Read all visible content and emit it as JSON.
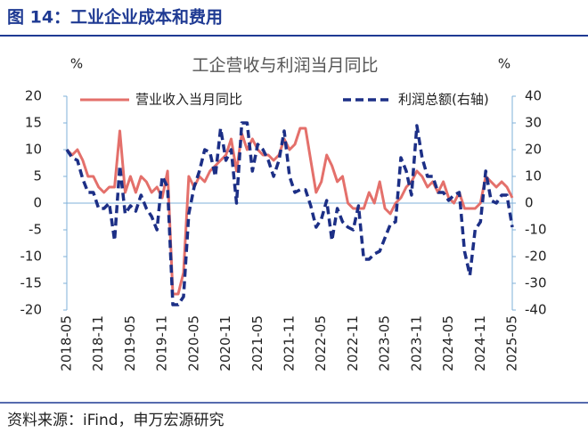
{
  "header": {
    "title": "图 14：工业企业成本和费用"
  },
  "chart_data": {
    "type": "line",
    "title": "工企营收与利润当月同比",
    "y_label": "%",
    "y2_label": "%",
    "categories": [
      "2018-05",
      null,
      null,
      null,
      null,
      null,
      "2018-11",
      null,
      null,
      null,
      null,
      null,
      "2019-05",
      null,
      null,
      null,
      null,
      null,
      "2019-11",
      null,
      null,
      null,
      null,
      null,
      "2020-05",
      null,
      null,
      null,
      null,
      null,
      "2020-11",
      null,
      null,
      null,
      null,
      null,
      "2021-05",
      null,
      null,
      null,
      null,
      null,
      "2021-11",
      null,
      null,
      null,
      null,
      null,
      "2022-05",
      null,
      null,
      null,
      null,
      null,
      "2022-11",
      null,
      null,
      null,
      null,
      null,
      "2023-05",
      null,
      null,
      null,
      null,
      null,
      "2023-11",
      null,
      null,
      null,
      null,
      null,
      "2024-05",
      null,
      null,
      null,
      null,
      null,
      "2024-11",
      null,
      null,
      null,
      null,
      null,
      "2025-05"
    ],
    "series": [
      {
        "name": "营业收入当月同比",
        "color": "#e4706b",
        "dash": false,
        "values": [
          10,
          9,
          10,
          8,
          5,
          5,
          3,
          2,
          3,
          3,
          13.5,
          2,
          5,
          2,
          5,
          4,
          2,
          3,
          1,
          6,
          -17,
          -17,
          -13,
          5,
          3,
          5,
          4,
          6,
          7,
          8,
          9,
          12,
          6,
          13,
          10,
          12,
          10,
          9,
          9,
          8,
          9,
          12,
          10,
          11,
          14,
          14,
          8,
          2,
          4,
          9,
          7,
          4,
          5,
          0,
          -1,
          -1,
          -1,
          2,
          0,
          4,
          -1,
          -2,
          0,
          1,
          3,
          4,
          6,
          5,
          3,
          4,
          2,
          4,
          1,
          0,
          2,
          -1,
          -1,
          -1,
          0,
          5,
          4,
          3,
          4,
          3,
          1
        ]
      },
      {
        "name": "利润总额(右轴)",
        "color": "#1c2f86",
        "dash": true,
        "axis": "y2",
        "values": [
          20,
          17,
          16,
          9,
          4,
          4,
          -2,
          -2,
          0,
          -14,
          14,
          -4,
          -1,
          -3,
          3,
          -2,
          -5,
          -10,
          10,
          6,
          -38,
          -38,
          -35,
          -4,
          6,
          12,
          20,
          19,
          10,
          28,
          16,
          20,
          0,
          30,
          30,
          12,
          22,
          20,
          16,
          10,
          16,
          27,
          10,
          4,
          5,
          5,
          -1,
          -9,
          -6,
          1,
          -14,
          -2,
          -7,
          -9,
          -10,
          -1,
          -21,
          -21,
          -19,
          -18,
          -13,
          -8,
          -7,
          17,
          12,
          3,
          29,
          17,
          10,
          10,
          4,
          4,
          1,
          3,
          4,
          -18,
          -27,
          -10,
          -7,
          12,
          1,
          0,
          3,
          3,
          -9
        ]
      }
    ],
    "ylim": [
      -20,
      20
    ],
    "yticks": [
      -20,
      -15,
      -10,
      -5,
      0,
      5,
      10,
      15,
      20
    ],
    "y2lim": [
      -40,
      40
    ],
    "y2ticks": [
      -40,
      -30,
      -20,
      -10,
      0,
      10,
      20,
      30,
      40
    ]
  },
  "footer": {
    "source": "资料来源：iFind，申万宏源研究"
  }
}
